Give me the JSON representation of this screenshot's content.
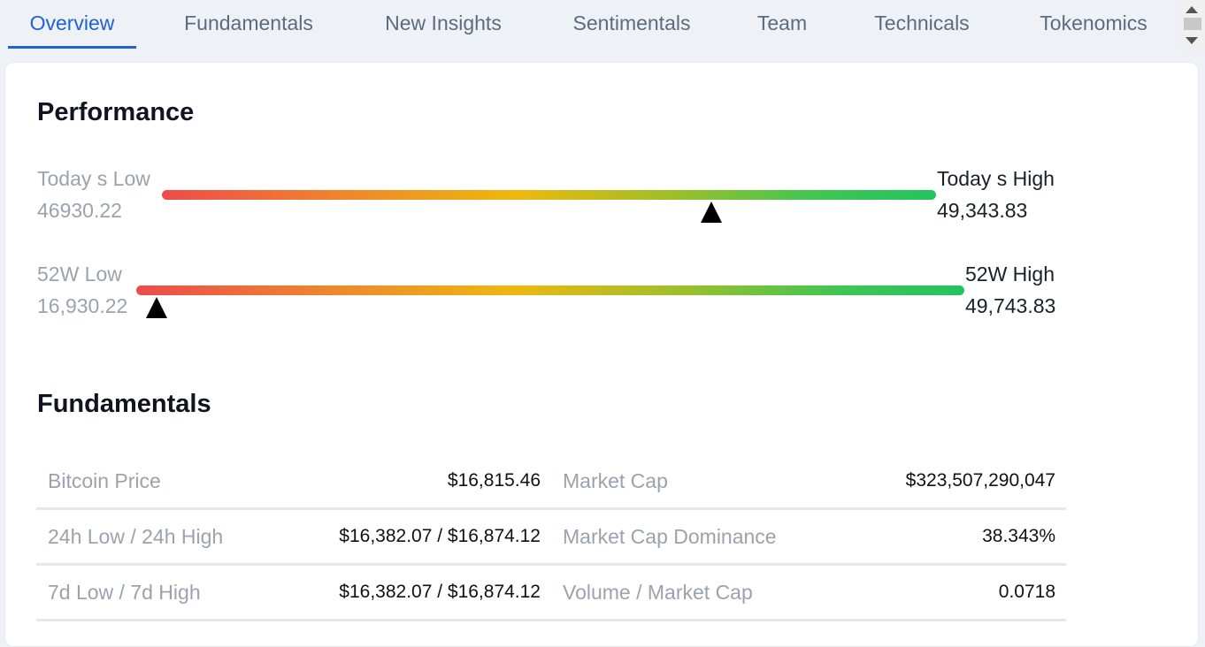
{
  "tabs": [
    {
      "label": "Overview",
      "active": true
    },
    {
      "label": "Fundamentals",
      "active": false
    },
    {
      "label": "New Insights",
      "active": false
    },
    {
      "label": "Sentimentals",
      "active": false
    },
    {
      "label": "Team",
      "active": false
    },
    {
      "label": "Technicals",
      "active": false
    },
    {
      "label": "Tokenomics",
      "active": false
    }
  ],
  "performance": {
    "title": "Performance",
    "today": {
      "low_label": "Today s Low",
      "low_value": "46930.22",
      "high_label": "Today s High",
      "high_value": "49,343.83",
      "marker_position_fraction": 0.71
    },
    "week52": {
      "low_label": "52W Low",
      "low_value": "16,930.22",
      "high_label": "52W High",
      "high_value": "49,743.83",
      "marker_position_fraction": 0.025
    }
  },
  "fundamentals": {
    "title": "Fundamentals",
    "rows": [
      {
        "left_label": "Bitcoin Price",
        "left_value": "$16,815.46",
        "right_label": "Market Cap",
        "right_value": "$323,507,290,047"
      },
      {
        "left_label": "24h Low / 24h High",
        "left_value": "$16,382.07 / $16,874.12",
        "right_label": "Market Cap Dominance",
        "right_value": "38.343%"
      },
      {
        "left_label": "7d Low / 7d High",
        "left_value": "$16,382.07 / $16,874.12",
        "right_label": "Volume / Market Cap",
        "right_value": "0.0718"
      }
    ]
  },
  "colors": {
    "accent": "#1f62d6",
    "bar_low": "#ee4b4b",
    "bar_mid": "#eeb80e",
    "bar_high": "#23c35e"
  }
}
